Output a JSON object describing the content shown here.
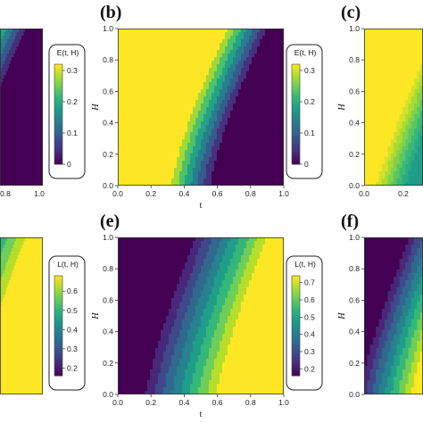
{
  "panel_labels": {
    "b": "(b)",
    "c": "(c)",
    "e": "(e)",
    "f": "(f)"
  },
  "chart_data": [
    {
      "panel": "a (cropped)",
      "type": "heatmap",
      "function": "E",
      "xlabel": "",
      "ylabel": "",
      "x_ticks_visible": [
        "0.8",
        "1.0"
      ],
      "colorbar": {
        "title": "E(t, H)",
        "ticks": [
          "0",
          "0.1",
          "0.2",
          "0.3"
        ],
        "range": [
          0,
          0.32
        ]
      }
    },
    {
      "panel": "b",
      "type": "heatmap",
      "function": "E",
      "xlabel": "t",
      "ylabel": "H",
      "xlim": [
        0,
        1
      ],
      "ylim": [
        0,
        1
      ],
      "x_ticks": [
        "0.0",
        "0.2",
        "0.4",
        "0.6",
        "0.8",
        "1.0"
      ],
      "y_ticks": [
        "0.0",
        "0.2",
        "0.4",
        "0.6",
        "0.8",
        "1.0"
      ],
      "colorbar": {
        "title": "E(t, H)",
        "ticks": [
          "0",
          "0.1",
          "0.2",
          "0.3"
        ],
        "range": [
          0,
          0.32
        ]
      },
      "value_range": [
        0,
        0.32
      ],
      "field": {
        "high_at": "small t",
        "transition_center_H0": 0.44,
        "transition_center_H1": 0.78,
        "transition_width": 0.27
      }
    },
    {
      "panel": "c (cropped)",
      "type": "heatmap",
      "function": "E",
      "ylabel": "H",
      "y_ticks": [
        "0.0",
        "0.2",
        "0.4",
        "0.6",
        "0.8",
        "1.0"
      ],
      "x_ticks_visible": [
        "0.0",
        "0.2"
      ]
    },
    {
      "panel": "d (cropped)",
      "type": "heatmap",
      "function": "L",
      "colorbar": {
        "title": "L(t, H)",
        "ticks": [
          "0.2",
          "0.3",
          "0.4",
          "0.5",
          "0.6"
        ],
        "range": [
          0.16,
          0.68
        ]
      }
    },
    {
      "panel": "e",
      "type": "heatmap",
      "function": "L",
      "xlabel": "t",
      "ylabel": "H",
      "xlim": [
        0,
        1
      ],
      "ylim": [
        0,
        1
      ],
      "x_ticks": [
        "0.0",
        "0.2",
        "0.4",
        "0.6",
        "0.8",
        "1.0"
      ],
      "y_ticks": [
        "0.0",
        "0.2",
        "0.4",
        "0.6",
        "0.8",
        "1.0"
      ],
      "colorbar": {
        "title": "L(t, H)",
        "ticks": [
          "0.2",
          "0.3",
          "0.4",
          "0.5",
          "0.6",
          "0.7"
        ],
        "range": [
          0.16,
          0.74
        ]
      },
      "value_range": [
        0.16,
        0.74
      ],
      "field": {
        "high_at": "large t",
        "transition_center_H0": 0.62,
        "transition_center_H1": 0.92,
        "transition_width": 0.48
      }
    },
    {
      "panel": "f (cropped)",
      "type": "heatmap",
      "function": "L",
      "ylabel": "H",
      "y_ticks": [
        "0.0",
        "0.2",
        "0.4",
        "0.6",
        "0.8",
        "1.0"
      ]
    }
  ]
}
